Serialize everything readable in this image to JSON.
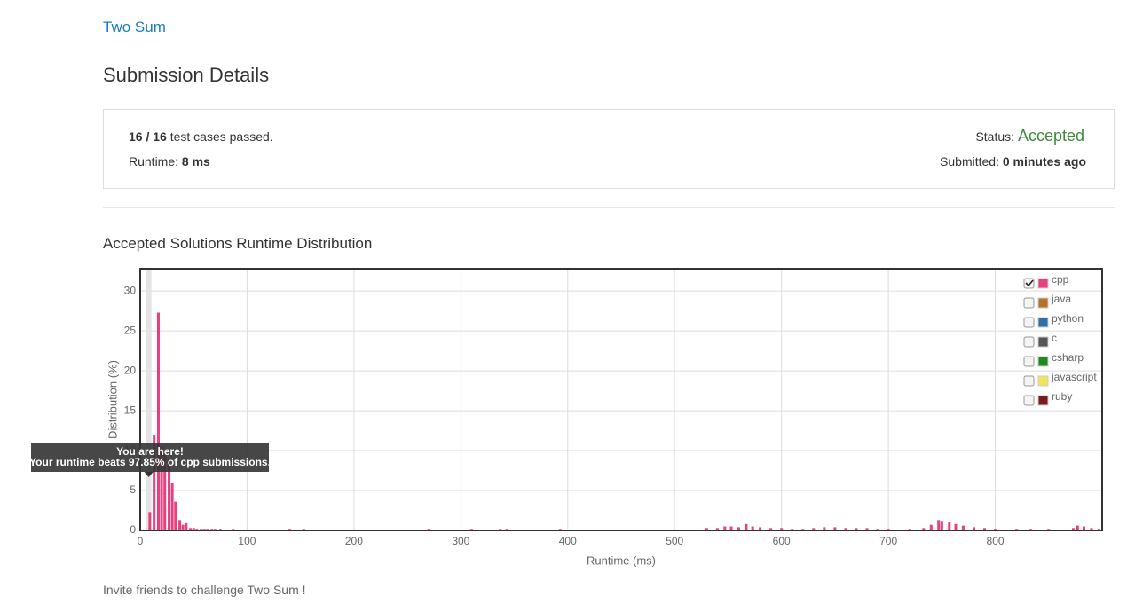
{
  "header": {
    "problem": "Two Sum",
    "title": "Submission Details"
  },
  "summary": {
    "passed": 16,
    "separator": "/",
    "total": 16,
    "passed_text": "test cases passed.",
    "runtime_label": "Runtime:",
    "runtime": "8 ms",
    "status_label": "Status:",
    "status": "Accepted",
    "submitted_label": "Submitted:",
    "submitted": "0 minutes ago"
  },
  "section_title": "Accepted Solutions Runtime Distribution",
  "chart_data": {
    "type": "bar",
    "xlabel": "Runtime (ms)",
    "ylabel": "Distribution (%)",
    "color": "#e8407f",
    "x": [
      9,
      13,
      17,
      20,
      23,
      27,
      30,
      33,
      37,
      40,
      43,
      47,
      50,
      53,
      57,
      60,
      63,
      67,
      70,
      75,
      80,
      87,
      93,
      100,
      113,
      117,
      133,
      140,
      147,
      153,
      160,
      167,
      173,
      180,
      187,
      193,
      200,
      207,
      213,
      220,
      227,
      233,
      270,
      290,
      297,
      310,
      320,
      330,
      337,
      343,
      350,
      360,
      380,
      393,
      400,
      420,
      450,
      460,
      480,
      500,
      520,
      530,
      540,
      547,
      553,
      560,
      567,
      573,
      580,
      590,
      600,
      610,
      620,
      630,
      640,
      650,
      660,
      670,
      680,
      690,
      700,
      720,
      733,
      740,
      747,
      750,
      757,
      763,
      770,
      780,
      790,
      800,
      820,
      833,
      850,
      867,
      873,
      877,
      883,
      890,
      897
    ],
    "values": [
      2.3,
      12,
      27.3,
      10.5,
      10,
      9,
      6,
      3.6,
      1.3,
      0.7,
      0.9,
      0.3,
      0.3,
      0.2,
      0.2,
      0.2,
      0.2,
      0.2,
      0.2,
      0.2,
      0.1,
      0.2,
      0.1,
      0.1,
      0.1,
      0.1,
      0.1,
      0.2,
      0.1,
      0.2,
      0.1,
      0.1,
      0.1,
      0.1,
      0.1,
      0.1,
      0.1,
      0.1,
      0.1,
      0.1,
      0.1,
      0.1,
      0.2,
      0.1,
      0.1,
      0.2,
      0.1,
      0.1,
      0.2,
      0.2,
      0.1,
      0.1,
      0.1,
      0.2,
      0.1,
      0.1,
      0.1,
      0.1,
      0.1,
      0.1,
      0.1,
      0.3,
      0.3,
      0.5,
      0.5,
      0.4,
      0.8,
      0.5,
      0.4,
      0.3,
      0.3,
      0.2,
      0.2,
      0.3,
      0.4,
      0.4,
      0.3,
      0.3,
      0.3,
      0.2,
      0.2,
      0.2,
      0.3,
      0.7,
      1.3,
      1.2,
      1.1,
      0.8,
      0.6,
      0.4,
      0.3,
      0.2,
      0.2,
      0.2,
      0.2,
      0.1,
      0.3,
      0.6,
      0.5,
      0.3,
      0.2
    ],
    "xlim": [
      0,
      900
    ],
    "ylim": [
      0,
      32.8
    ],
    "xticks": [
      0,
      100,
      200,
      300,
      400,
      500,
      600,
      700,
      800
    ],
    "yticks": [
      0,
      5,
      10,
      15,
      20,
      25,
      30
    ],
    "grid": true,
    "highlight_x": 8,
    "annotations": [
      "You are here!",
      "Your runtime beats 97.85% of cpp submissions."
    ],
    "legend_position": "upper right",
    "legend": [
      {
        "name": "cpp",
        "color": "#e8407f",
        "checked": true
      },
      {
        "name": "java",
        "color": "#b8732a",
        "checked": false
      },
      {
        "name": "python",
        "color": "#2f6fa7",
        "checked": false
      },
      {
        "name": "c",
        "color": "#555555",
        "checked": false
      },
      {
        "name": "csharp",
        "color": "#1f8a1f",
        "checked": false
      },
      {
        "name": "javascript",
        "color": "#f2e35c",
        "checked": false
      },
      {
        "name": "ruby",
        "color": "#7a1c1c",
        "checked": false
      }
    ]
  },
  "footer": "Invite friends to challenge Two Sum !"
}
